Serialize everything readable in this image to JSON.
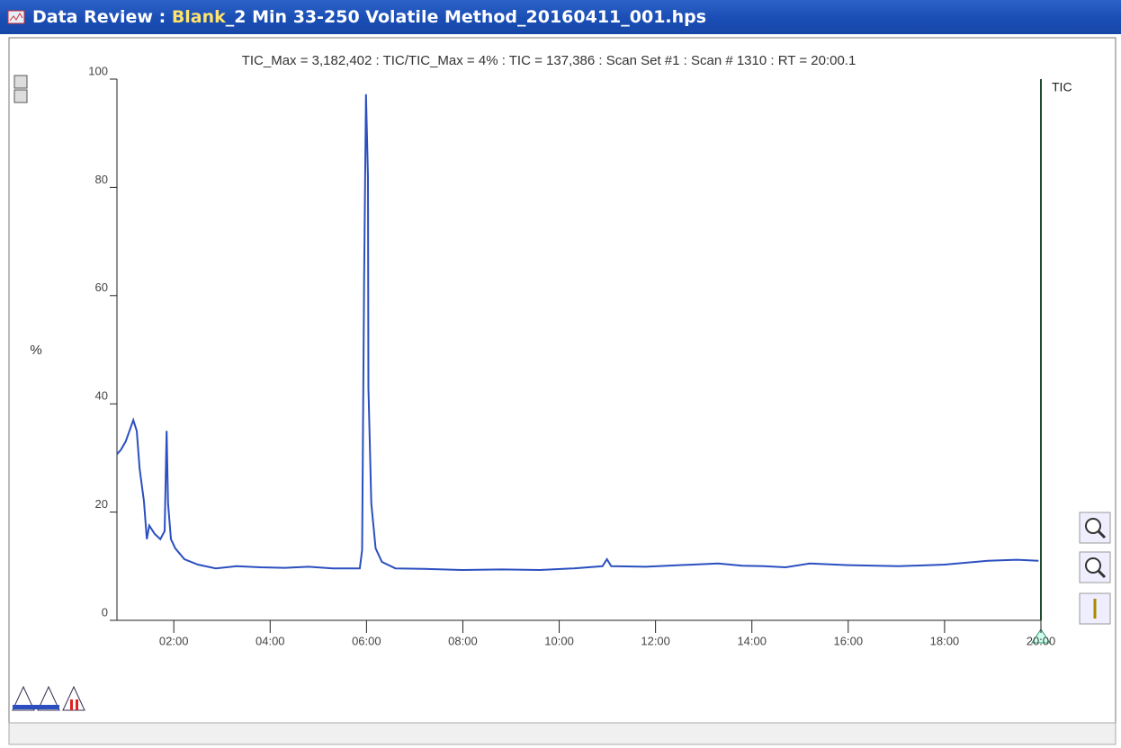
{
  "window": {
    "title_prefix": "Data Review :",
    "title_highlight": "Blank",
    "title_rest": "_2 Min 33-250 Volatile Method_20160411_001.hps"
  },
  "chart_data": {
    "type": "line",
    "header": "TIC_Max = 3,182,402 : TIC/TIC_Max = 4% : TIC = 137,386 : Scan Set #1 : Scan #  1310 : RT = 20:00.1",
    "ylabel": "%",
    "x": [
      0.82,
      0.9,
      1.0,
      1.08,
      1.16,
      1.23,
      1.29,
      1.38,
      1.44,
      1.49,
      1.6,
      1.72,
      1.81,
      1.85,
      1.88,
      1.94,
      2.03,
      2.22,
      2.5,
      2.87,
      3.3,
      3.8,
      4.3,
      4.8,
      5.3,
      5.86,
      5.91,
      5.95,
      5.99,
      6.03,
      6.04,
      6.1,
      6.19,
      6.32,
      6.6,
      7.2,
      8.0,
      8.8,
      9.6,
      10.3,
      10.9,
      10.99,
      11.08,
      11.8,
      12.5,
      13.3,
      13.8,
      14.25,
      14.7,
      15.2,
      16.0,
      17.05,
      18.0,
      18.9,
      19.5,
      19.95
    ],
    "series": [
      {
        "name": "TIC",
        "color": "#2b4fbf",
        "values": [
          30.7,
          31.5,
          33,
          35,
          37,
          35,
          28,
          22,
          15,
          17.5,
          16,
          15,
          16.5,
          35,
          21.6,
          15,
          13.3,
          11.3,
          10.3,
          9.6,
          10,
          9.8,
          9.7,
          9.9,
          9.6,
          9.6,
          13,
          62.8,
          97.2,
          82,
          43,
          21.6,
          13.3,
          10.8,
          9.6,
          9.5,
          9.3,
          9.4,
          9.3,
          9.6,
          10,
          11.3,
          10,
          9.9,
          10.2,
          10.5,
          10.1,
          10,
          9.8,
          10.5,
          10.2,
          10,
          10.3,
          11,
          11.2,
          11
        ]
      }
    ],
    "xlim": [
      0.82,
      20
    ],
    "ylim": [
      0,
      100
    ],
    "yticks": [
      0,
      20,
      40,
      60,
      80,
      100
    ],
    "xticks": [
      {
        "value": 2,
        "label": "02:00"
      },
      {
        "value": 4,
        "label": "04:00"
      },
      {
        "value": 6,
        "label": "06:00"
      },
      {
        "value": 8,
        "label": "08:00"
      },
      {
        "value": 10,
        "label": "10:00"
      },
      {
        "value": 12,
        "label": "12:00"
      },
      {
        "value": 14,
        "label": "14:00"
      },
      {
        "value": 16,
        "label": "16:00"
      },
      {
        "value": 18,
        "label": "18:00"
      },
      {
        "value": 20,
        "label": "20:00"
      }
    ]
  }
}
